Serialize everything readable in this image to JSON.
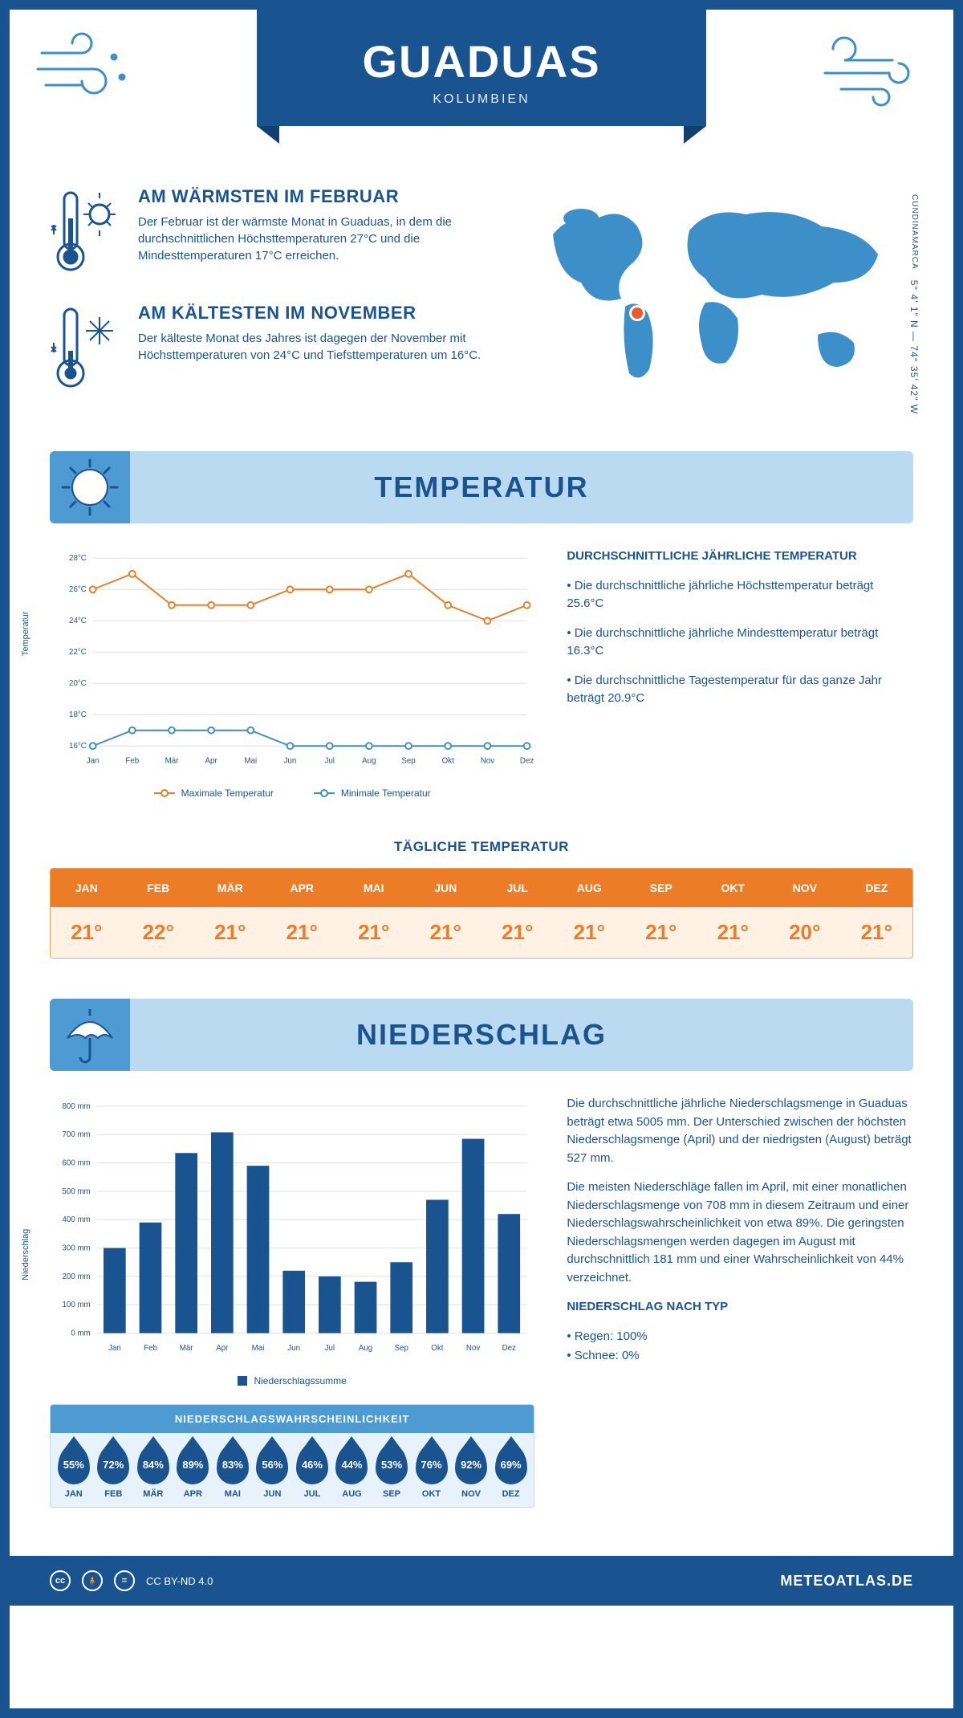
{
  "header": {
    "title": "GUADUAS",
    "subtitle": "KOLUMBIEN"
  },
  "facts": {
    "warm": {
      "title": "AM WÄRMSTEN IM FEBRUAR",
      "text": "Der Februar ist der wärmste Monat in Guaduas, in dem die durchschnittlichen Höchsttemperaturen 27°C und die Mindesttemperaturen 17°C erreichen."
    },
    "cold": {
      "title": "AM KÄLTESTEN IM NOVEMBER",
      "text": "Der kälteste Monat des Jahres ist dagegen der November mit Höchsttemperaturen von 24°C und Tiefsttemperaturen um 16°C."
    },
    "coords": "5° 4' 1\" N — 74° 35' 42\" W",
    "region": "CUNDINAMARCA"
  },
  "temperature": {
    "section_title": "TEMPERATUR",
    "side_title": "DURCHSCHNITTLICHE JÄHRLICHE TEMPERATUR",
    "side_points": [
      "• Die durchschnittliche jährliche Höchsttemperatur beträgt 25.6°C",
      "• Die durchschnittliche jährliche Mindesttemperatur beträgt 16.3°C",
      "• Die durchschnittliche Tagestemperatur für das ganze Jahr beträgt 20.9°C"
    ],
    "chart": {
      "type": "line",
      "y_label": "Temperatur",
      "months": [
        "Jan",
        "Feb",
        "Mär",
        "Apr",
        "Mai",
        "Jun",
        "Jul",
        "Aug",
        "Sep",
        "Okt",
        "Nov",
        "Dez"
      ],
      "ylim": [
        16,
        28
      ],
      "ytick_step": 2,
      "ytick_suffix": "°C",
      "grid_color": "#e0e0e0",
      "series": [
        {
          "name": "Maximale Temperatur",
          "color": "#ec7c26",
          "values": [
            26,
            27,
            25,
            25,
            25,
            26,
            26,
            26,
            27,
            25,
            24,
            25
          ]
        },
        {
          "name": "Minimale Temperatur",
          "color": "#3d8fc9",
          "values": [
            16,
            17,
            17,
            17,
            17,
            16,
            16,
            16,
            16,
            16,
            16,
            16
          ]
        }
      ]
    },
    "daily_title": "TÄGLICHE TEMPERATUR",
    "daily": {
      "months": [
        "JAN",
        "FEB",
        "MÄR",
        "APR",
        "MAI",
        "JUN",
        "JUL",
        "AUG",
        "SEP",
        "OKT",
        "NOV",
        "DEZ"
      ],
      "values": [
        "21°",
        "22°",
        "21°",
        "21°",
        "21°",
        "21°",
        "21°",
        "21°",
        "21°",
        "21°",
        "20°",
        "21°"
      ],
      "header_bg": "#ec7c26",
      "row_bg": "#fff1e3",
      "text_color": "#ec7c26"
    }
  },
  "precipitation": {
    "section_title": "NIEDERSCHLAG",
    "chart": {
      "type": "bar",
      "y_label": "Niederschlag",
      "months": [
        "Jan",
        "Feb",
        "Mär",
        "Apr",
        "Mai",
        "Jun",
        "Jul",
        "Aug",
        "Sep",
        "Okt",
        "Nov",
        "Dez"
      ],
      "values": [
        300,
        390,
        635,
        708,
        590,
        220,
        200,
        181,
        250,
        470,
        685,
        420
      ],
      "ylim": [
        0,
        800
      ],
      "ytick_step": 100,
      "ytick_suffix": " mm",
      "bar_color": "#1a5490",
      "grid_color": "#e0e0e0",
      "legend": "Niederschlagssumme"
    },
    "text1": "Die durchschnittliche jährliche Niederschlagsmenge in Guaduas beträgt etwa 5005 mm. Der Unterschied zwischen der höchsten Niederschlagsmenge (April) und der niedrigsten (August) beträgt 527 mm.",
    "text2": "Die meisten Niederschläge fallen im April, mit einer monatlichen Niederschlagsmenge von 708 mm in diesem Zeitraum und einer Niederschlagswahrscheinlichkeit von etwa 89%. Die geringsten Niederschlagsmengen werden dagegen im August mit durchschnittlich 181 mm und einer Wahrscheinlichkeit von 44% verzeichnet.",
    "type_title": "NIEDERSCHLAG NACH TYP",
    "type_lines": [
      "• Regen: 100%",
      "• Schnee: 0%"
    ],
    "prob": {
      "title": "NIEDERSCHLAGSWAHRSCHEINLICHKEIT",
      "months": [
        "JAN",
        "FEB",
        "MÄR",
        "APR",
        "MAI",
        "JUN",
        "JUL",
        "AUG",
        "SEP",
        "OKT",
        "NOV",
        "DEZ"
      ],
      "values": [
        "55%",
        "72%",
        "84%",
        "89%",
        "83%",
        "56%",
        "46%",
        "44%",
        "53%",
        "76%",
        "92%",
        "69%"
      ],
      "drop_color": "#1a5490"
    }
  },
  "footer": {
    "license": "CC BY-ND 4.0",
    "site": "METEOATLAS.DE"
  }
}
